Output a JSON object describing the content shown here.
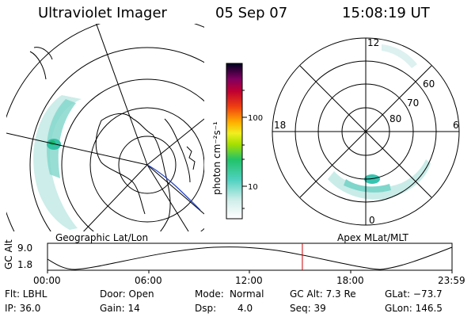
{
  "header": {
    "instrument": "Ultraviolet Imager",
    "date": "05 Sep 07",
    "time": "15:08:19 UT"
  },
  "colorbar": {
    "label": "photon cm⁻²s⁻¹",
    "ticks": [
      "100",
      "10"
    ]
  },
  "polar": {
    "lat_labels": [
      "60",
      "70",
      "80"
    ],
    "mlt_labels": [
      "12",
      "18",
      "6",
      "0"
    ]
  },
  "map_titles": {
    "left": "Geographic Lat/Lon",
    "right": "Apex MLat/MLT"
  },
  "altitude_plot": {
    "ylabel": "GC Alt",
    "yticks": [
      "9.0",
      "1.8"
    ],
    "xticks": [
      "00:00",
      "06:00",
      "12:00",
      "18:00",
      "23:59"
    ],
    "current_time_fraction": 0.63
  },
  "info": {
    "row1": {
      "flt": "Flt: LBHL",
      "door": "Door: Open",
      "mode_label": "Mode:",
      "mode_value": "Normal",
      "gcalt": "GC Alt: 7.3 Re",
      "glat": "GLat: −73.7"
    },
    "row2": {
      "ip": "IP: 36.0",
      "gain": "Gain: 14",
      "dsp_label": "Dsp:",
      "dsp_value": "4.0",
      "seq": "Seq: 39",
      "glon": "GLon: 146.5"
    }
  },
  "colors": {
    "aurora_low": "#8fd9d0",
    "aurora_mid": "#36c4b0",
    "aurora_high": "#19b870",
    "time_marker": "#cc0000"
  }
}
